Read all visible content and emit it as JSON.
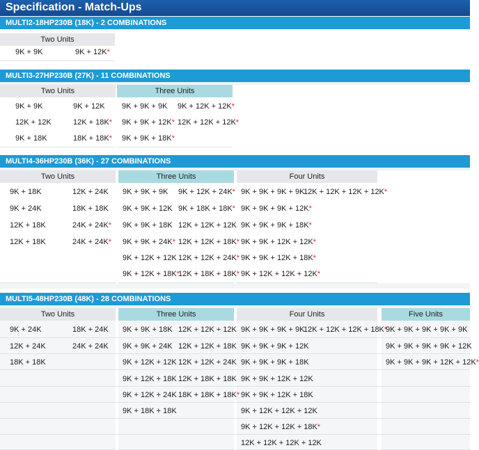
{
  "page": {
    "title": "Specification - Match-Ups"
  },
  "sections": [
    {
      "title": "MULTI2-18HP230B (18K) - 2 COMBINATIONS",
      "groups": [
        {
          "header": "Two Units",
          "items": [
            "9K + 9K",
            "9K + 12K*"
          ]
        }
      ]
    },
    {
      "title": "MULTI3-27HP230B (27K) - 11 COMBINATIONS",
      "groups": [
        {
          "header": "Two Units",
          "items": [
            "9K + 9K",
            "9K + 12K",
            "12K + 12K",
            "12K + 18K*",
            "9K + 18K",
            "18K + 18K*"
          ]
        },
        {
          "header": "Three Units",
          "items": [
            "9K + 9K + 9K",
            "9K + 12K + 12K*",
            "9K + 9K + 12K*",
            "12K + 12K + 12K*",
            "9K + 9K + 18K*"
          ]
        }
      ]
    },
    {
      "title": "MULTI4-36HP230B (36K) - 27 COMBINATIONS",
      "groups": [
        {
          "header": "Two Units",
          "items": [
            "9K + 18K",
            "12K + 24K",
            "9K + 24K",
            "18K + 18K",
            "12K + 18K",
            "24K + 24K*",
            "12K + 18K",
            "24K + 24K*"
          ]
        },
        {
          "header": "Three Units",
          "items": [
            "9K + 9K + 9K",
            "9K + 12K + 24K*",
            "9K + 9K + 12K",
            "9K + 18K + 18K*",
            "9K + 9K + 18K",
            "12K + 12K + 12K",
            "9K + 9K + 24K*",
            "12K + 12K + 18K*",
            "9K + 12K + 12K",
            "12K + 12K + 24K*",
            "9K + 12K + 18K*",
            "12K + 18K + 18K*"
          ]
        },
        {
          "header": "Four Units",
          "items": [
            "9K + 9K + 9K + 9K",
            "12K + 12K + 12K + 12K*",
            "9K + 9K + 9K + 12K*",
            "9K + 9K + 9K + 18K*",
            "9K + 9K + 12K + 12K*",
            "9K + 9K + 12K + 18K*",
            "9K + 12K + 12K + 12K*"
          ]
        }
      ]
    },
    {
      "title": "MULTI5-48HP230B (48K) - 28 COMBINATIONS",
      "groups": [
        {
          "header": "Two Units",
          "items": [
            "9K + 24K",
            "18K + 24K",
            "12K + 24K",
            "24K + 24K",
            "18K + 18K"
          ]
        },
        {
          "header": "Three Units",
          "items": [
            "9K + 9K + 18K",
            "12K + 12K + 12K",
            "9K + 9K + 24K",
            "12K + 12K + 18K",
            "9K + 12K + 12K",
            "12K + 12K + 24K",
            "9K + 12K + 18K",
            "12K + 18K + 18K",
            "9K + 12K + 24K",
            "18K + 18K + 18K*",
            "9K + 18K + 18K"
          ]
        },
        {
          "header": "Four Units",
          "items": [
            "9K + 9K + 9K + 9K",
            "12K + 12K + 12K + 18K*",
            "9K + 9K + 9K + 12K",
            "9K + 9K + 9K + 18K",
            "9K + 9K + 12K + 12K",
            "9K + 9K + 12K + 18K",
            "9K + 12K + 12K + 12K",
            "9K + 12K + 12K + 18K*",
            "12K + 12K + 12K + 12K"
          ]
        },
        {
          "header": "Five Units",
          "items": [
            "9K + 9K + 9K + 9K + 9K",
            "9K + 9K + 9K + 9K + 12K",
            "9K + 9K + 9K + 12K + 12K*"
          ]
        }
      ]
    }
  ],
  "colors": {
    "title_bar": "#134a91",
    "section_bar": "#1e9ad6",
    "header_gray": "#e6e7ea",
    "header_teal": "#a9dae1",
    "asterisk": "#e0232a"
  }
}
